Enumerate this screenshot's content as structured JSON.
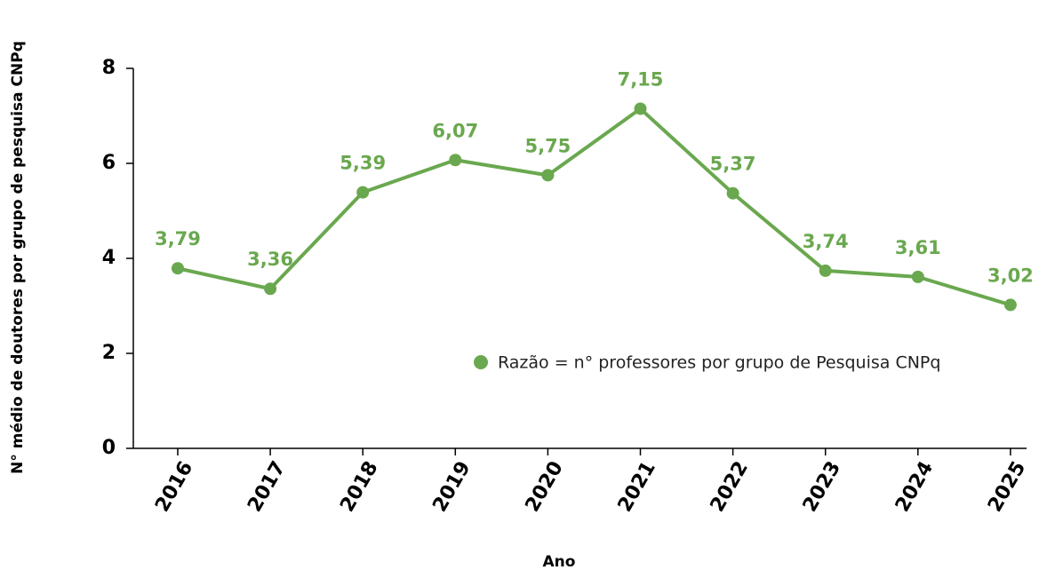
{
  "chart_data": {
    "type": "line",
    "xlabel": "Ano",
    "ylabel": "N° médio de doutores por grupo de pesquisa CNPq",
    "categories": [
      "2016",
      "2017",
      "2018",
      "2019",
      "2020",
      "2021",
      "2022",
      "2023",
      "2024",
      "2025"
    ],
    "series": [
      {
        "name": "Razão = n° professores por grupo de Pesquisa CNPq",
        "color": "#6aa84f",
        "values": [
          3.79,
          3.36,
          5.39,
          6.07,
          5.75,
          7.15,
          5.37,
          3.74,
          3.61,
          3.02
        ],
        "value_labels": [
          "3,79",
          "3,36",
          "5,39",
          "6,07",
          "5,75",
          "7,15",
          "5,37",
          "3,74",
          "3,61",
          "3,02"
        ]
      }
    ],
    "ylim": [
      0,
      8
    ],
    "yticks": [
      0,
      2,
      4,
      6,
      8
    ]
  }
}
